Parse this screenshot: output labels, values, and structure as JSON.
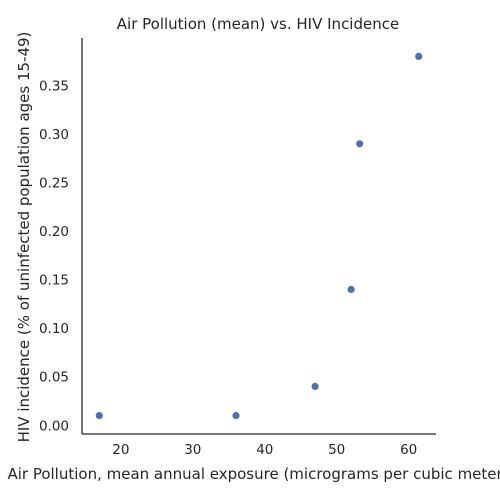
{
  "chart_data": {
    "type": "scatter",
    "title": "Air Pollution (mean) vs. HIV Incidence",
    "xlabel": "Air Pollution, mean annual exposure (micrograms per cubic meter)",
    "ylabel": "HIV incidence (% of uninfected population ages 15-49)",
    "xlim": [
      14.6,
      63.8
    ],
    "ylim": [
      -0.009,
      0.399
    ],
    "xticks": [
      20,
      30,
      40,
      50,
      60
    ],
    "yticks": [
      0.0,
      0.05,
      0.1,
      0.15,
      0.2,
      0.25,
      0.3,
      0.35
    ],
    "grid": false,
    "points": [
      {
        "x": 17.0,
        "y": 0.01
      },
      {
        "x": 36.0,
        "y": 0.01
      },
      {
        "x": 47.0,
        "y": 0.04
      },
      {
        "x": 52.0,
        "y": 0.14
      },
      {
        "x": 53.2,
        "y": 0.29
      },
      {
        "x": 61.4,
        "y": 0.38
      }
    ],
    "marker_color": "#4c72b0"
  }
}
